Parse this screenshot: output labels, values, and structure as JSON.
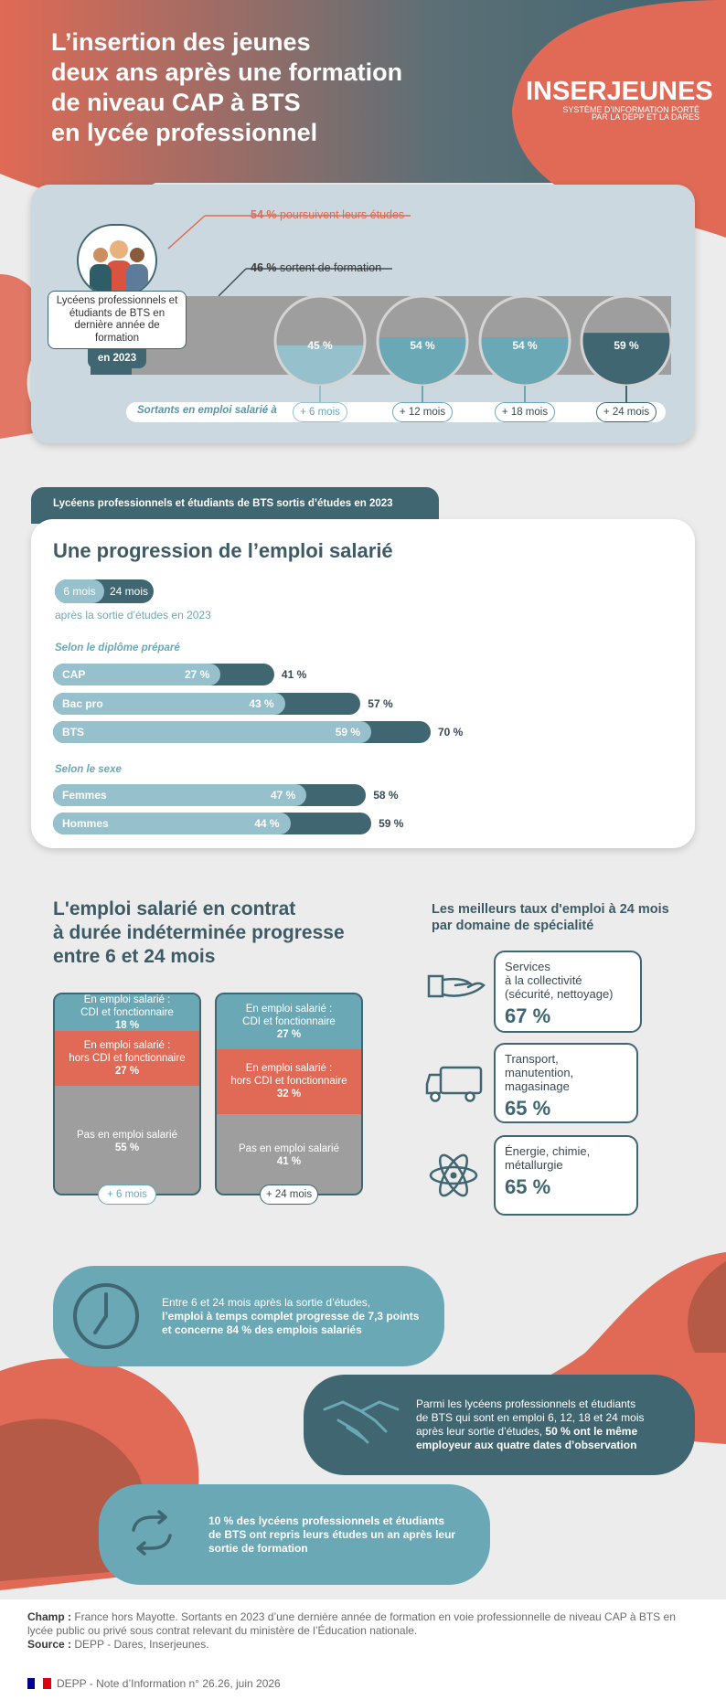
{
  "header": {
    "title": "L’insertion des jeunes\ndeux ans après une formation\nde niveau CAP à BTS\nen lycée professionnel",
    "logo_name": "INSERJEUNES",
    "logo_sub1": "SYSTÈME D’INFORMATION PORTÉ",
    "logo_sub2": "PAR LA DEPP ET LA DARES"
  },
  "overview": {
    "studies_pct": "54 %",
    "studies_text": "poursuivent leurs études",
    "exit_pct": "46 %",
    "exit_text": "sortent de formation",
    "cohort_label": "Lycéens professionnels et étudiants de BTS en dernière année de formation",
    "cohort_year": "en 2023",
    "employment_label": "Sortants en emploi salarié à",
    "circles": [
      {
        "label": "+ 6 mois",
        "value": 45,
        "text": "45 %"
      },
      {
        "label": "+ 12 mois",
        "value": 54,
        "text": "54 %"
      },
      {
        "label": "+ 18 mois",
        "value": 54,
        "text": "54 %"
      },
      {
        "label": "+ 24 mois",
        "value": 59,
        "text": "59 %"
      }
    ]
  },
  "progression": {
    "tab": "Lycéens professionnels et étudiants de BTS sortis d’études en 2023",
    "title": "Une progression de l’emploi salarié",
    "legend_6": "6 mois",
    "legend_24": "24 mois",
    "legend_caption": "après la sortie d’études en 2023",
    "group_diploma": "Selon le diplôme préparé",
    "group_sex": "Selon le sexe"
  },
  "chart_data": [
    {
      "type": "bar",
      "title": "Une progression de l’emploi salarié",
      "groups": [
        "Selon le diplôme préparé",
        "Selon le sexe"
      ],
      "categories": [
        "CAP",
        "Bac pro",
        "BTS",
        "Femmes",
        "Hommes"
      ],
      "series": [
        {
          "name": "6 mois",
          "values": [
            27,
            43,
            59,
            47,
            44
          ]
        },
        {
          "name": "24 mois",
          "values": [
            41,
            57,
            70,
            58,
            59
          ]
        }
      ]
    },
    {
      "type": "bar",
      "title": "L'emploi salarié en contrat à durée indéterminée progresse entre 6 et 24 mois",
      "categories": [
        "+ 6 mois",
        "+ 24 mois"
      ],
      "series": [
        {
          "name": "En emploi salarié : CDI et fonctionnaire",
          "values": [
            18,
            27
          ]
        },
        {
          "name": "En emploi salarié : hors CDI et fonctionnaire",
          "values": [
            27,
            32
          ]
        },
        {
          "name": "Pas en emploi salarié",
          "values": [
            55,
            41
          ]
        }
      ]
    },
    {
      "type": "table",
      "title": "Les meilleurs taux d'emploi à 24 mois par domaine de spécialité",
      "categories": [
        "Services à la collectivité (sécurité, nettoyage)",
        "Transport, manutention, magasinage",
        "Énergie, chimie, métallurgie"
      ],
      "values": [
        67,
        65,
        65
      ]
    }
  ],
  "colors": {
    "coral": "#e06a55",
    "teal_dark": "#3f6671",
    "teal_light": "#95c0cc",
    "teal_mid": "#6aa8b6",
    "grey_bar": "#9e9e9e"
  },
  "cdi": {
    "title": "L'emploi salarié en contrat\nà durée indéterminée progresse\nentre 6 et 24 mois",
    "cols": [
      {
        "seg1": "En emploi salarié :\nCDI et fonctionnaire",
        "seg1v": "18 %",
        "seg2": "En emploi salarié :\nhors CDI et fonctionnaire",
        "seg2v": "27 %",
        "seg3": "Pas en emploi salarié",
        "seg3v": "55 %",
        "label": "+ 6 mois"
      },
      {
        "seg1": "En emploi salarié :\nCDI et fonctionnaire",
        "seg1v": "27 %",
        "seg2": "En emploi salarié :\nhors CDI et fonctionnaire",
        "seg2v": "32 %",
        "seg3": "Pas en emploi salarié",
        "seg3v": "41 %",
        "label": "+ 24 mois"
      }
    ]
  },
  "domains": {
    "title": "Les meilleurs taux d'emploi à 24 mois\npar domaine de spécialité",
    "items": [
      {
        "label": "Services\nà la collectivité\n(sécurité, nettoyage)",
        "value": "67 %",
        "icon": "hand-icon"
      },
      {
        "label": "Transport,\nmanutention,\nmagasinage",
        "value": "65 %",
        "icon": "truck-icon"
      },
      {
        "label": "Énergie, chimie,\nmétallurgie",
        "value": "65 %",
        "icon": "atom-icon"
      }
    ]
  },
  "facts": {
    "f1_pre": "Entre 6 et 24 mois après la sortie d’études,",
    "f1_bold": "l’emploi à temps complet progresse de 7,3 points\net concerne 84 % des emplois salariés",
    "f2_pre": "Parmi les lycéens professionnels et étudiants\nde BTS qui sont en emploi 6, 12, 18 et 24 mois\naprès leur sortie d’études,",
    "f2_bold": "50 % ont le même\nemployeur aux quatre dates d’observation",
    "f3_bold": "10 % des lycéens professionnels et étudiants\nde BTS ont repris leurs études un an après leur\nsortie de formation"
  },
  "footer": {
    "champ_label": "Champ :",
    "champ_text": "France hors Mayotte. Sortants en 2023 d’une dernière année de formation en voie professionnelle de niveau CAP à BTS en lycée public ou privé sous contrat relevant du ministère de l’Éducation nationale.",
    "source_label": "Source :",
    "source_text": "DEPP - Dares, Inserjeunes.",
    "note": "DEPP - Note d’Information n° 26.26, juin 2026"
  }
}
